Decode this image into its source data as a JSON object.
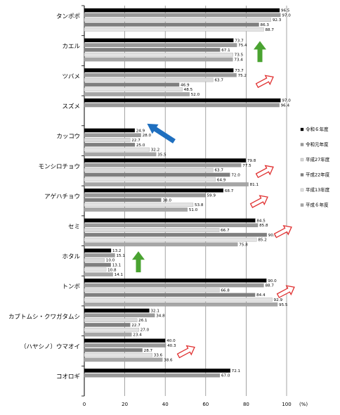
{
  "chart_data": {
    "type": "bar",
    "orientation": "horizontal",
    "title": "",
    "xlabel": "",
    "ylabel": "",
    "unit": "(%)",
    "xlim": [
      0,
      100
    ],
    "xticks": [
      0,
      20,
      40,
      60,
      80,
      100
    ],
    "grid": true,
    "legend_position": "right",
    "categories": [
      "タンポポ",
      "カエル",
      "ツバメ",
      "スズメ",
      "カッコウ",
      "モンシロチョウ",
      "アゲハチョウ",
      "セミ",
      "ホタル",
      "トンボ",
      "カブトムシ・クワガタムシ",
      "（ハヤシノ）ウマオイ",
      "コオロギ"
    ],
    "series": [
      {
        "name": "令和６年度",
        "color": "#000000",
        "values": [
          96.5,
          73.7,
          73.7,
          97.0,
          24.9,
          79.8,
          68.7,
          84.5,
          13.2,
          90.0,
          32.1,
          40.0,
          72.1
        ]
      },
      {
        "name": "令和元年度",
        "color": "#9a9a9a",
        "values": [
          97.0,
          75.4,
          75.2,
          96.4,
          28.0,
          77.5,
          59.9,
          85.8,
          15.1,
          88.7,
          34.8,
          40.3,
          67.0
        ]
      },
      {
        "name": "平成27年度",
        "color": "#d9d9d9",
        "values": [
          92.3,
          null,
          63.7,
          null,
          22.7,
          63.7,
          null,
          66.7,
          10.0,
          66.8,
          26.1,
          null,
          null
        ]
      },
      {
        "name": "平成22年度",
        "color": "#7f7f7f",
        "values": [
          86.3,
          67.1,
          46.9,
          null,
          25.0,
          72.0,
          38.0,
          90.2,
          13.1,
          84.4,
          22.7,
          28.7,
          null
        ]
      },
      {
        "name": "平成13年度",
        "color": "#e3e3e3",
        "values": [
          88.7,
          73.5,
          48.5,
          null,
          32.2,
          64.9,
          53.8,
          85.2,
          10.8,
          92.9,
          27.0,
          33.6,
          null
        ]
      },
      {
        "name": "平成６年度",
        "color": "#a6a6a6",
        "values": [
          null,
          73.4,
          52.0,
          null,
          35.5,
          81.1,
          51.0,
          75.8,
          14.1,
          95.5,
          23.4,
          38.6,
          null
        ]
      }
    ],
    "annotations": [
      {
        "type": "arrow-up",
        "category": "カエル",
        "color": "#4aa331"
      },
      {
        "type": "arrow-up-right-outline",
        "category": "ツバメ",
        "color": "#e03030"
      },
      {
        "type": "arrow-up-left",
        "category": "カッコウ",
        "color": "#1f6fbf"
      },
      {
        "type": "arrow-up-right-outline",
        "category": "モンシロチョウ",
        "color": "#e03030"
      },
      {
        "type": "arrow-up-right-outline",
        "category": "アゲハチョウ",
        "color": "#e03030"
      },
      {
        "type": "arrow-up-right-outline",
        "category": "セミ",
        "color": "#e03030"
      },
      {
        "type": "arrow-up",
        "category": "ホタル",
        "color": "#4aa331"
      },
      {
        "type": "arrow-up-right-outline",
        "category": "トンボ",
        "color": "#e03030"
      },
      {
        "type": "arrow-up-right-outline",
        "category": "（ハヤシノ）ウマオイ",
        "color": "#e03030"
      }
    ]
  }
}
